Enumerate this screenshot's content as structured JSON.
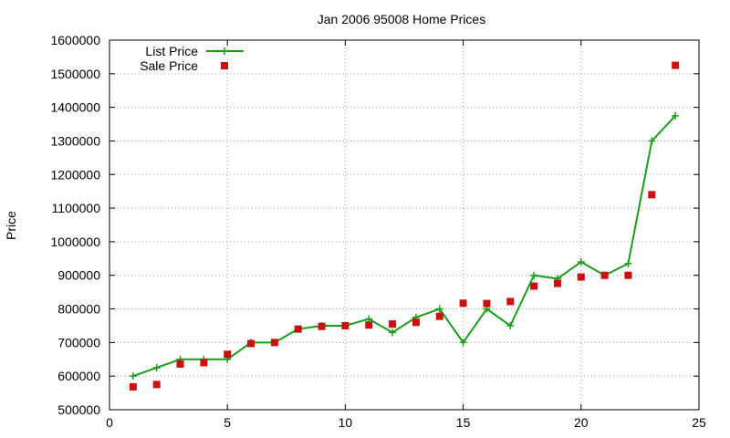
{
  "chart_data": {
    "type": "line",
    "title": "Jan 2006 95008 Home Prices",
    "xlabel": "",
    "ylabel": "Price",
    "xlim": [
      0,
      25
    ],
    "ylim": [
      500000,
      1600000
    ],
    "xticks": [
      0,
      5,
      10,
      15,
      20,
      25
    ],
    "yticks": [
      500000,
      600000,
      700000,
      800000,
      900000,
      1000000,
      1100000,
      1200000,
      1300000,
      1400000,
      1500000,
      1600000
    ],
    "grid": true,
    "legend_position": "top-left",
    "series": [
      {
        "name": "List Price",
        "style": "line+cross",
        "color": "#1a9e1a",
        "x": [
          1,
          2,
          3,
          4,
          5,
          6,
          7,
          8,
          9,
          10,
          11,
          12,
          13,
          14,
          15,
          16,
          17,
          18,
          19,
          20,
          21,
          22,
          23,
          24
        ],
        "y": [
          600000,
          625000,
          650000,
          650000,
          650000,
          700000,
          700000,
          740000,
          750000,
          750000,
          770000,
          730000,
          775000,
          800000,
          700000,
          800000,
          750000,
          900000,
          890000,
          940000,
          900000,
          935000,
          1300000,
          1375000
        ]
      },
      {
        "name": "Sale Price",
        "style": "square-points",
        "color": "#cc1010",
        "x": [
          1,
          2,
          3,
          4,
          5,
          6,
          7,
          8,
          9,
          10,
          11,
          12,
          13,
          14,
          15,
          16,
          17,
          18,
          19,
          20,
          21,
          22,
          23,
          24
        ],
        "y": [
          568000,
          575000,
          636000,
          640000,
          665000,
          697000,
          700000,
          740000,
          748000,
          750000,
          752000,
          755000,
          760000,
          778000,
          817000,
          816000,
          822000,
          868000,
          876000,
          895000,
          900000,
          900000,
          1140000,
          1525000
        ]
      }
    ]
  }
}
